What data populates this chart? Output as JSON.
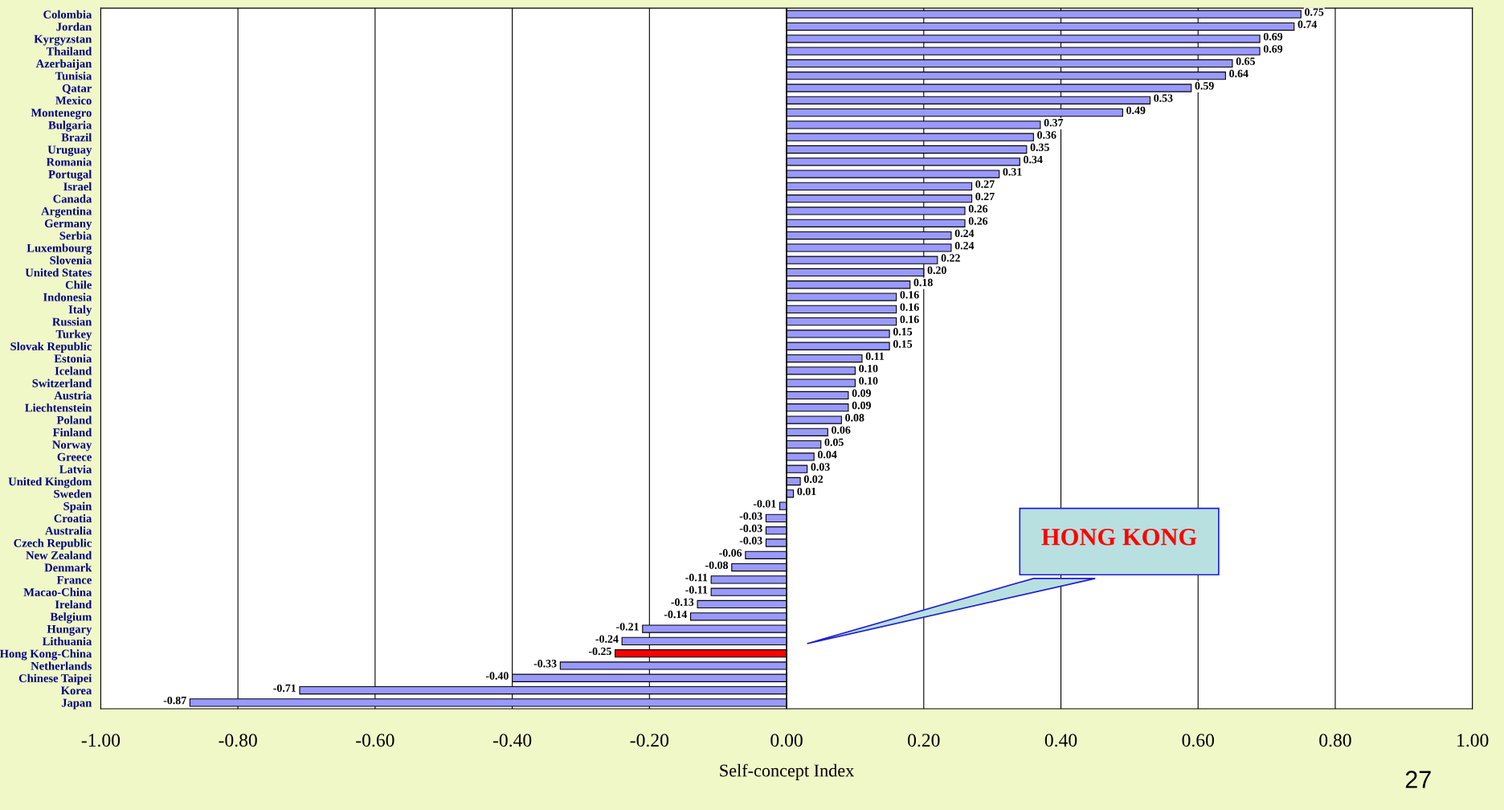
{
  "chart_data": {
    "type": "bar",
    "orientation": "horizontal",
    "xlabel": "Self-concept Index",
    "categories": [
      "Colombia",
      "Jordan",
      "Kyrgyzstan",
      "Thailand",
      "Azerbaijan",
      "Tunisia",
      "Qatar",
      "Mexico",
      "Montenegro",
      "Bulgaria",
      "Brazil",
      "Uruguay",
      "Romania",
      "Portugal",
      "Israel",
      "Canada",
      "Argentina",
      "Germany",
      "Serbia",
      "Luxembourg",
      "Slovenia",
      "United States",
      "Chile",
      "Indonesia",
      "Italy",
      "Russian",
      "Turkey",
      "Slovak Republic",
      "Estonia",
      "Iceland",
      "Switzerland",
      "Austria",
      "Liechtenstein",
      "Poland",
      "Finland",
      "Norway",
      "Greece",
      "Latvia",
      "United Kingdom",
      "Sweden",
      "Spain",
      "Croatia",
      "Australia",
      "Czech Republic",
      "New Zealand",
      "Denmark",
      "France",
      "Macao-China",
      "Ireland",
      "Belgium",
      "Hungary",
      "Lithuania",
      "Hong Kong-China",
      "Netherlands",
      "Chinese Taipei",
      "Korea",
      "Japan"
    ],
    "values": [
      0.75,
      0.74,
      0.69,
      0.69,
      0.65,
      0.64,
      0.59,
      0.53,
      0.49,
      0.37,
      0.36,
      0.35,
      0.34,
      0.31,
      0.27,
      0.27,
      0.26,
      0.26,
      0.24,
      0.24,
      0.22,
      0.2,
      0.18,
      0.16,
      0.16,
      0.16,
      0.15,
      0.15,
      0.11,
      0.1,
      0.1,
      0.09,
      0.09,
      0.08,
      0.06,
      0.05,
      0.04,
      0.03,
      0.02,
      0.01,
      -0.01,
      -0.03,
      -0.03,
      -0.03,
      -0.06,
      -0.08,
      -0.11,
      -0.11,
      -0.13,
      -0.14,
      -0.21,
      -0.24,
      -0.25,
      -0.33,
      -0.4,
      -0.71,
      -0.87
    ],
    "value_labels": [
      "0.75",
      "0.74",
      "0.69",
      "0.69",
      "0.65",
      "0.64",
      "0.59",
      "0.53",
      "0.49",
      "0.37",
      "0.36",
      "0.35",
      "0.34",
      "0.31",
      "0.27",
      "0.27",
      "0.26",
      "0.26",
      "0.24",
      "0.24",
      "0.22",
      "0.20",
      "0.18",
      "0.16",
      "0.16",
      "0.16",
      "0.15",
      "0.15",
      "0.11",
      "0.10",
      "0.10",
      "0.09",
      "0.09",
      "0.08",
      "0.06",
      "0.05",
      "0.04",
      "0.03",
      "0.02",
      "0.01",
      "-0.01",
      "-0.03",
      "-0.03",
      "-0.03",
      "-0.06",
      "-0.08",
      "-0.11",
      "-0.11",
      "-0.13",
      "-0.14",
      "-0.21",
      "-0.24",
      "-0.25",
      "-0.33",
      "-0.40",
      "-0.71",
      "-0.87"
    ],
    "colors": [
      "#9999ff",
      "#9999ff",
      "#9999ff",
      "#9999ff",
      "#9999ff",
      "#9999ff",
      "#9999ff",
      "#9999ff",
      "#9999ff",
      "#9999ff",
      "#9999ff",
      "#9999ff",
      "#9999ff",
      "#9999ff",
      "#9999ff",
      "#9999ff",
      "#9999ff",
      "#9999ff",
      "#9999ff",
      "#9999ff",
      "#9999ff",
      "#9999ff",
      "#9999ff",
      "#9999ff",
      "#9999ff",
      "#9999ff",
      "#9999ff",
      "#9999ff",
      "#9999ff",
      "#9999ff",
      "#9999ff",
      "#9999ff",
      "#9999ff",
      "#9999ff",
      "#9999ff",
      "#9999ff",
      "#9999ff",
      "#9999ff",
      "#9999ff",
      "#9999ff",
      "#9999ff",
      "#9999ff",
      "#9999ff",
      "#9999ff",
      "#9999ff",
      "#9999ff",
      "#9999ff",
      "#9999ff",
      "#9999ff",
      "#9999ff",
      "#9999ff",
      "#9999ff",
      "#ff0000",
      "#9999ff",
      "#9999ff",
      "#9999ff",
      "#9999ff"
    ],
    "xlim": [
      -1.0,
      1.0
    ],
    "xticks": [
      {
        "value": -1.0,
        "label": "-1.00"
      },
      {
        "value": -0.8,
        "label": "-0.80"
      },
      {
        "value": -0.6,
        "label": "-0.60"
      },
      {
        "value": -0.4,
        "label": "-0.40"
      },
      {
        "value": -0.2,
        "label": "-0.20"
      },
      {
        "value": 0.0,
        "label": "0.00"
      },
      {
        "value": 0.2,
        "label": "0.20"
      },
      {
        "value": 0.4,
        "label": "0.40"
      },
      {
        "value": 0.6,
        "label": "0.60"
      },
      {
        "value": 0.8,
        "label": "0.80"
      },
      {
        "value": 1.0,
        "label": "1.00"
      }
    ],
    "grid": "x",
    "annotations": [
      "HONG KONG",
      "27"
    ]
  }
}
